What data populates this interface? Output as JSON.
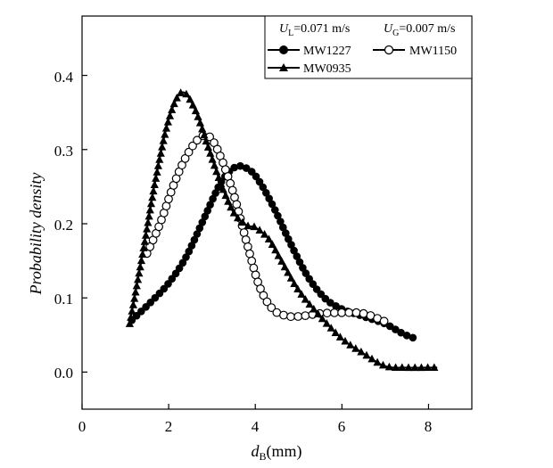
{
  "chart_data": {
    "type": "line",
    "title": "",
    "xlabel": {
      "main": "d",
      "sub": "B",
      "unit": "(mm)"
    },
    "ylabel": "Probability density",
    "xlim": [
      0,
      9
    ],
    "ylim": [
      -0.05,
      0.48
    ],
    "xticks": [
      0,
      2,
      4,
      6,
      8
    ],
    "yticks": [
      0.0,
      0.1,
      0.2,
      0.3,
      0.4
    ],
    "xtick_labels": [
      "0",
      "2",
      "4",
      "6",
      "8"
    ],
    "ytick_labels": [
      "0.0",
      "0.1",
      "0.2",
      "0.3",
      "0.4"
    ],
    "conditions": [
      {
        "symbol": "U",
        "sub": "L",
        "value": "=0.071 m/s"
      },
      {
        "symbol": "U",
        "sub": "G",
        "value": "=0.007 m/s"
      }
    ],
    "legend_position": "top-right",
    "series": [
      {
        "name": "MW1227",
        "marker": "filled-circle",
        "color": "#000000",
        "x": [
          1.15,
          1.6,
          2.0,
          2.4,
          2.8,
          3.2,
          3.5,
          3.7,
          4.0,
          4.4,
          4.8,
          5.2,
          5.6,
          6.0,
          6.5,
          7.0,
          7.4,
          7.7
        ],
        "values": [
          0.07,
          0.095,
          0.12,
          0.155,
          0.205,
          0.255,
          0.275,
          0.277,
          0.265,
          0.225,
          0.175,
          0.13,
          0.1,
          0.085,
          0.075,
          0.065,
          0.052,
          0.045
        ]
      },
      {
        "name": "MW1150",
        "marker": "open-circle",
        "color": "#000000",
        "x": [
          1.5,
          1.8,
          2.1,
          2.4,
          2.7,
          2.95,
          3.2,
          3.5,
          3.8,
          4.1,
          4.4,
          4.7,
          5.0,
          5.5,
          6.0,
          6.5,
          7.0
        ],
        "values": [
          0.16,
          0.2,
          0.25,
          0.29,
          0.315,
          0.317,
          0.29,
          0.24,
          0.175,
          0.115,
          0.085,
          0.076,
          0.075,
          0.079,
          0.08,
          0.079,
          0.068
        ]
      },
      {
        "name": "MW0935",
        "marker": "filled-triangle",
        "color": "#000000",
        "x": [
          1.1,
          1.4,
          1.7,
          2.0,
          2.3,
          2.6,
          2.9,
          3.2,
          3.5,
          3.8,
          4.0,
          4.3,
          4.6,
          5.0,
          5.5,
          6.0,
          6.5,
          7.0,
          7.5,
          8.0,
          8.2
        ],
        "values": [
          0.065,
          0.16,
          0.26,
          0.34,
          0.377,
          0.355,
          0.305,
          0.255,
          0.215,
          0.198,
          0.195,
          0.18,
          0.15,
          0.11,
          0.075,
          0.045,
          0.025,
          0.008,
          0.006,
          0.006,
          0.006
        ]
      }
    ]
  }
}
